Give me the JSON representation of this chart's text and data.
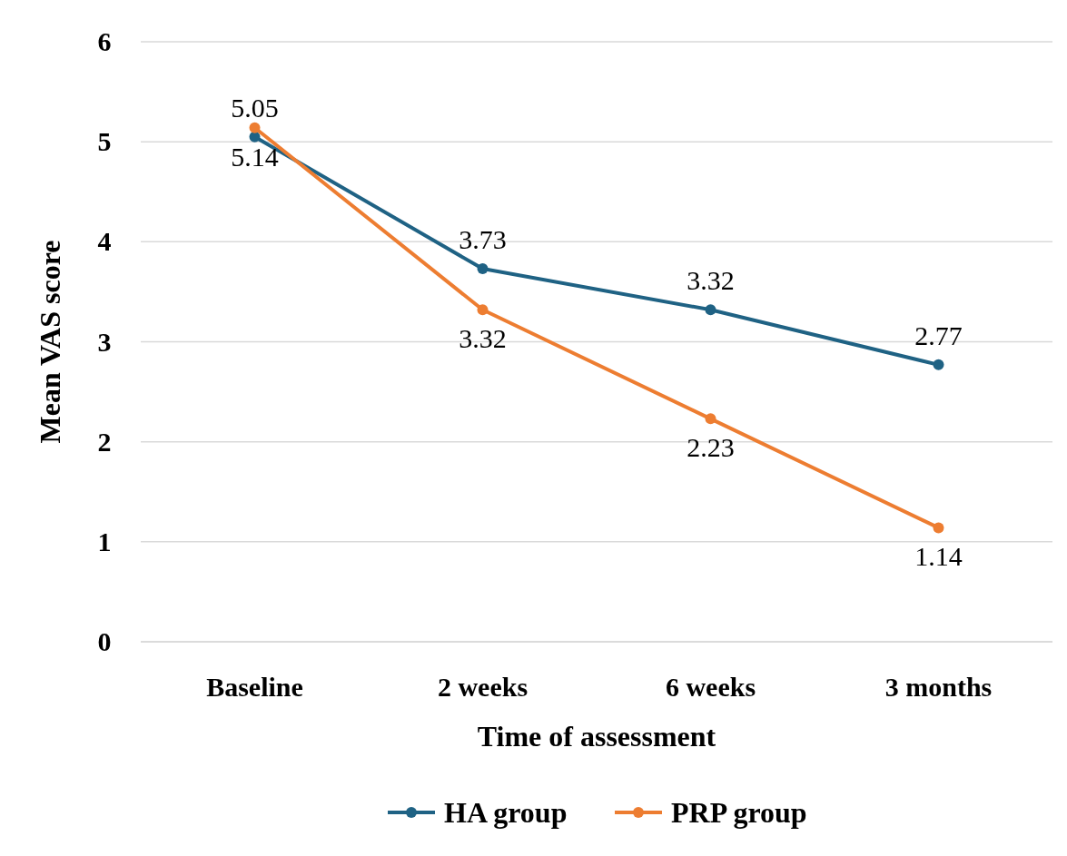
{
  "chart_data": {
    "type": "line",
    "xlabel": "Time of assessment",
    "ylabel": "Mean VAS score",
    "categories": [
      "Baseline",
      "2 weeks",
      "6 weeks",
      "3 months"
    ],
    "series": [
      {
        "name": "HA group",
        "color": "#1f6284",
        "values": [
          5.05,
          3.73,
          3.32,
          2.77
        ]
      },
      {
        "name": "PRP group",
        "color": "#ed7d31",
        "values": [
          5.14,
          3.32,
          2.23,
          1.14
        ]
      }
    ],
    "ylim": [
      0,
      6
    ],
    "yticks": [
      0,
      1,
      2,
      3,
      4,
      5,
      6
    ],
    "grid": "y",
    "legend": "bottom",
    "marker": "circle",
    "line_style": "solid",
    "data_labels": true
  }
}
